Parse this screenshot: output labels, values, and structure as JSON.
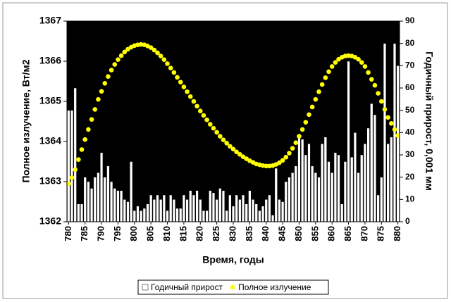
{
  "chart_data": {
    "type": "bar-line",
    "x_label": "Время, годы",
    "y_label": "Полное излучение, Вт/м2",
    "y2_label": "Годичный прирост, 0,001 мм",
    "categories": [
      780,
      null,
      null,
      null,
      null,
      785,
      null,
      null,
      null,
      null,
      790,
      null,
      null,
      null,
      null,
      795,
      null,
      null,
      null,
      null,
      800,
      null,
      null,
      null,
      null,
      805,
      null,
      null,
      null,
      null,
      810,
      null,
      null,
      null,
      null,
      815,
      null,
      null,
      null,
      null,
      820,
      null,
      null,
      null,
      null,
      825,
      null,
      null,
      null,
      null,
      830,
      null,
      null,
      null,
      null,
      835,
      null,
      null,
      null,
      null,
      840,
      null,
      null,
      null,
      null,
      845,
      null,
      null,
      null,
      null,
      850,
      null,
      null,
      null,
      null,
      855,
      null,
      null,
      null,
      null,
      860,
      null,
      null,
      null,
      null,
      865,
      null,
      null,
      null,
      null,
      870,
      null,
      null,
      null,
      null,
      875,
      null,
      null,
      null,
      null,
      880
    ],
    "series": [
      {
        "name": "Годичный прирост",
        "kind": "bar",
        "axis": "y2",
        "color": "#ffffff",
        "values": [
          50,
          50,
          60,
          8,
          8,
          20,
          18,
          15,
          20,
          22,
          31,
          20,
          25,
          18,
          15,
          14,
          14,
          10,
          9,
          27,
          5,
          7,
          5,
          6,
          8,
          12,
          10,
          12,
          10,
          12,
          5,
          12,
          10,
          6,
          6,
          12,
          10,
          14,
          12,
          14,
          10,
          5,
          5,
          14,
          13,
          10,
          15,
          14,
          5,
          12,
          7,
          12,
          10,
          12,
          8,
          14,
          10,
          8,
          5,
          7,
          10,
          12,
          3,
          24,
          10,
          9,
          18,
          20,
          22,
          25,
          38,
          37,
          30,
          35,
          25,
          22,
          20,
          35,
          38,
          27,
          22,
          31,
          30,
          8,
          27,
          72,
          29,
          40,
          22,
          30,
          35,
          42,
          53,
          48,
          12,
          20,
          80,
          35,
          38,
          80,
          70
        ]
      },
      {
        "name": "Полное излучение",
        "kind": "dots",
        "axis": "y",
        "color": "#ffff00",
        "values": [
          1362.95,
          1363.1,
          1363.3,
          1363.55,
          1363.8,
          1364.05,
          1364.3,
          1364.55,
          1364.8,
          1365.05,
          1365.25,
          1365.45,
          1365.62,
          1365.78,
          1365.92,
          1366.04,
          1366.14,
          1366.23,
          1366.3,
          1366.35,
          1366.39,
          1366.41,
          1366.42,
          1366.41,
          1366.38,
          1366.34,
          1366.28,
          1366.21,
          1366.13,
          1366.04,
          1365.94,
          1365.83,
          1365.72,
          1365.6,
          1365.48,
          1365.36,
          1365.24,
          1365.12,
          1365.0,
          1364.88,
          1364.76,
          1364.65,
          1364.54,
          1364.43,
          1364.33,
          1364.23,
          1364.13,
          1364.04,
          1363.96,
          1363.88,
          1363.81,
          1363.74,
          1363.68,
          1363.62,
          1363.57,
          1363.52,
          1363.48,
          1363.44,
          1363.42,
          1363.4,
          1363.39,
          1363.39,
          1363.4,
          1363.43,
          1363.47,
          1363.53,
          1363.61,
          1363.71,
          1363.83,
          1363.97,
          1364.13,
          1364.3,
          1364.48,
          1364.67,
          1364.86,
          1365.05,
          1365.24,
          1365.42,
          1365.59,
          1365.74,
          1365.87,
          1365.97,
          1366.05,
          1366.1,
          1366.13,
          1366.14,
          1366.13,
          1366.1,
          1366.05,
          1365.97,
          1365.87,
          1365.72,
          1365.55,
          1365.4,
          1365.2,
          1365.0,
          1364.8,
          1364.6,
          1364.45,
          1364.3,
          1364.15
        ]
      }
    ],
    "ylim": [
      1362,
      1367
    ],
    "yticks": [
      1362,
      1363,
      1364,
      1365,
      1366,
      1367
    ],
    "y2lim": [
      0,
      90
    ],
    "y2ticks": [
      0,
      10,
      20,
      30,
      40,
      50,
      60,
      70,
      80,
      90
    ],
    "plot_background": "#000000",
    "legend": "bottom"
  }
}
